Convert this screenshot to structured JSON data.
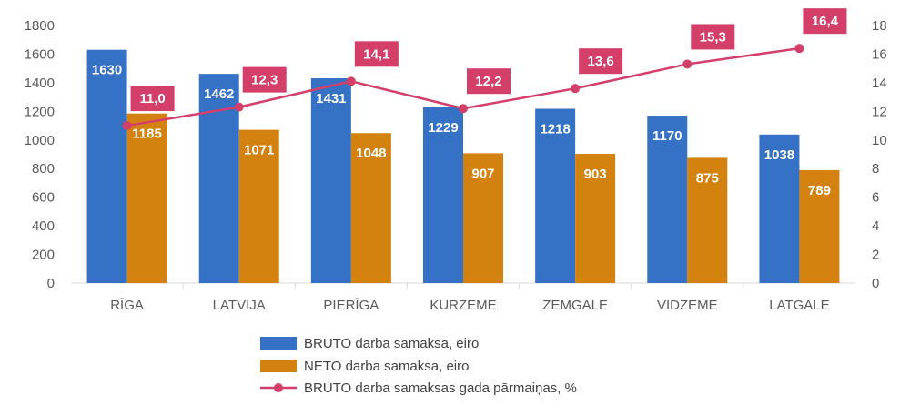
{
  "chart_data": {
    "type": "bar",
    "categories": [
      "RĪGA",
      "LATVIJA",
      "PIERĪGA",
      "KURZEME",
      "ZEMGALE",
      "VIDZEME",
      "LATGALE"
    ],
    "series": [
      {
        "name": "BRUTO darba samaksa, eiro",
        "type": "bar",
        "axis": "left",
        "color": "#3572C6",
        "values": [
          1630,
          1462,
          1431,
          1229,
          1218,
          1170,
          1038
        ],
        "labels": [
          "1630",
          "1462",
          "1431",
          "1229",
          "1218",
          "1170",
          "1038"
        ]
      },
      {
        "name": "NETO darba samaksa, eiro",
        "type": "bar",
        "axis": "left",
        "color": "#D4820F",
        "values": [
          1185,
          1071,
          1048,
          907,
          903,
          875,
          789
        ],
        "labels": [
          "1185",
          "1071",
          "1048",
          "907",
          "903",
          "875",
          "789"
        ]
      },
      {
        "name": "BRUTO darba samaksas gada pārmaiņas, %",
        "type": "line",
        "axis": "right",
        "color": "#D43F6A",
        "values": [
          11.0,
          12.3,
          14.1,
          12.2,
          13.6,
          15.3,
          16.4
        ],
        "labels": [
          "11,0",
          "12,3",
          "14,1",
          "12,2",
          "13,6",
          "15,3",
          "16,4"
        ]
      }
    ],
    "y_left": {
      "min": 0,
      "max": 1800,
      "ticks": [
        "0",
        "200",
        "400",
        "600",
        "800",
        "1000",
        "1200",
        "1400",
        "1600",
        "1800"
      ]
    },
    "y_right": {
      "min": 0,
      "max": 18,
      "ticks": [
        "0",
        "2",
        "4",
        "6",
        "8",
        "10",
        "12",
        "14",
        "16",
        "18"
      ]
    },
    "legend_position": "bottom",
    "grid": false
  }
}
